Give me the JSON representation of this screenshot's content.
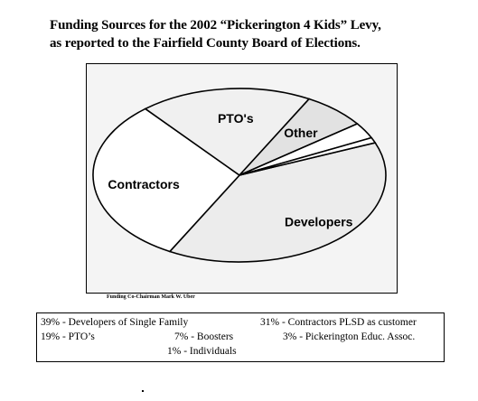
{
  "title": {
    "line1": "Funding Sources for the 2002 “Pickerington 4 Kids” Levy,",
    "line2": "as reported to the Fairfield County Board of Elections."
  },
  "credit": "Funding Co-Chairman Mark W. Uber",
  "legend": {
    "item1": "39% -  Developers of Single Family",
    "item2": "31% - Contractors PLSD as customer",
    "item3": "19% - PTO’s",
    "item4": "7% -  Boosters",
    "item5": "3% - Pickerington Educ. Assoc.",
    "item6": "1% -  Individuals"
  },
  "chart_data": {
    "type": "pie",
    "slices": [
      {
        "label": "Developers",
        "value": 39,
        "fill": "#ececec",
        "shown": true
      },
      {
        "label": "Contractors",
        "value": 31,
        "fill": "#ffffff",
        "shown": true
      },
      {
        "label": "PTO's",
        "value": 19,
        "fill": "#f0f0f0",
        "shown": true
      },
      {
        "label": "Other",
        "value": 7,
        "fill": "#e2e2e2",
        "shown": true
      },
      {
        "label": "",
        "value": 3,
        "fill": "#ffffff",
        "shown": false
      },
      {
        "label": "",
        "value": 1,
        "fill": "#ffffff",
        "shown": false
      }
    ]
  }
}
